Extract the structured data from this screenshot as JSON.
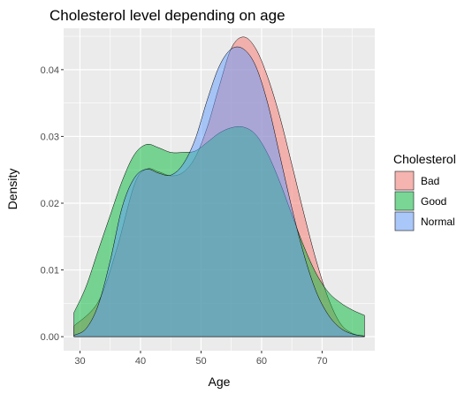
{
  "chart_data": {
    "type": "area",
    "subtype": "density",
    "title": "Cholesterol level depending on age",
    "xlabel": "Age",
    "ylabel": "Density",
    "xlim": [
      27.3,
      78.7
    ],
    "ylim": [
      -0.0021,
      0.0462
    ],
    "x_ticks": [
      30,
      40,
      50,
      60,
      70
    ],
    "y_ticks": [
      0.0,
      0.01,
      0.02,
      0.03,
      0.04
    ],
    "y_tick_labels": [
      "0.00",
      "0.01",
      "0.02",
      "0.03",
      "0.04"
    ],
    "grid": true,
    "legend": {
      "title": "Cholesterol",
      "position": "right"
    },
    "series": [
      {
        "name": "Bad",
        "color": "#F8766D",
        "points": [
          [
            29,
            0.0016
          ],
          [
            33,
            0.0052
          ],
          [
            36,
            0.0129
          ],
          [
            39,
            0.0228
          ],
          [
            41,
            0.0251
          ],
          [
            43,
            0.0247
          ],
          [
            45,
            0.0241
          ],
          [
            47,
            0.0246
          ],
          [
            49,
            0.0268
          ],
          [
            51,
            0.0313
          ],
          [
            53,
            0.0375
          ],
          [
            55,
            0.0432
          ],
          [
            57,
            0.0449
          ],
          [
            59,
            0.0432
          ],
          [
            61,
            0.0389
          ],
          [
            63,
            0.033
          ],
          [
            65,
            0.0258
          ],
          [
            67,
            0.0184
          ],
          [
            69,
            0.0115
          ],
          [
            71,
            0.0058
          ],
          [
            73,
            0.002
          ],
          [
            75,
            0.0005
          ],
          [
            77,
            0.0001
          ]
        ]
      },
      {
        "name": "Good",
        "color": "#00BA38",
        "points": [
          [
            29,
            0.0036
          ],
          [
            31,
            0.0075
          ],
          [
            33,
            0.0129
          ],
          [
            35,
            0.0182
          ],
          [
            37,
            0.0234
          ],
          [
            39,
            0.0273
          ],
          [
            41,
            0.0288
          ],
          [
            43,
            0.0283
          ],
          [
            45,
            0.0276
          ],
          [
            47,
            0.0276
          ],
          [
            49,
            0.0278
          ],
          [
            51,
            0.0291
          ],
          [
            53,
            0.0305
          ],
          [
            55,
            0.0313
          ],
          [
            57,
            0.0314
          ],
          [
            59,
            0.0303
          ],
          [
            61,
            0.0274
          ],
          [
            63,
            0.0232
          ],
          [
            65,
            0.0183
          ],
          [
            67,
            0.0135
          ],
          [
            69,
            0.0095
          ],
          [
            71,
            0.0067
          ],
          [
            73,
            0.0051
          ],
          [
            75,
            0.004
          ],
          [
            77,
            0.0032
          ]
        ]
      },
      {
        "name": "Normal",
        "color": "#619CFF",
        "points": [
          [
            29,
            0.0002
          ],
          [
            31,
            0.0012
          ],
          [
            33,
            0.0047
          ],
          [
            35,
            0.0114
          ],
          [
            37,
            0.0195
          ],
          [
            39,
            0.0238
          ],
          [
            41,
            0.0251
          ],
          [
            43,
            0.0245
          ],
          [
            45,
            0.0242
          ],
          [
            47,
            0.0258
          ],
          [
            49,
            0.0295
          ],
          [
            51,
            0.0354
          ],
          [
            53,
            0.0405
          ],
          [
            55,
            0.0431
          ],
          [
            57,
            0.0431
          ],
          [
            59,
            0.0406
          ],
          [
            61,
            0.035
          ],
          [
            63,
            0.0272
          ],
          [
            65,
            0.0193
          ],
          [
            67,
            0.0123
          ],
          [
            69,
            0.0068
          ],
          [
            71,
            0.0033
          ],
          [
            73,
            0.0013
          ],
          [
            75,
            0.0004
          ],
          [
            77,
            0.0001
          ]
        ]
      }
    ]
  }
}
